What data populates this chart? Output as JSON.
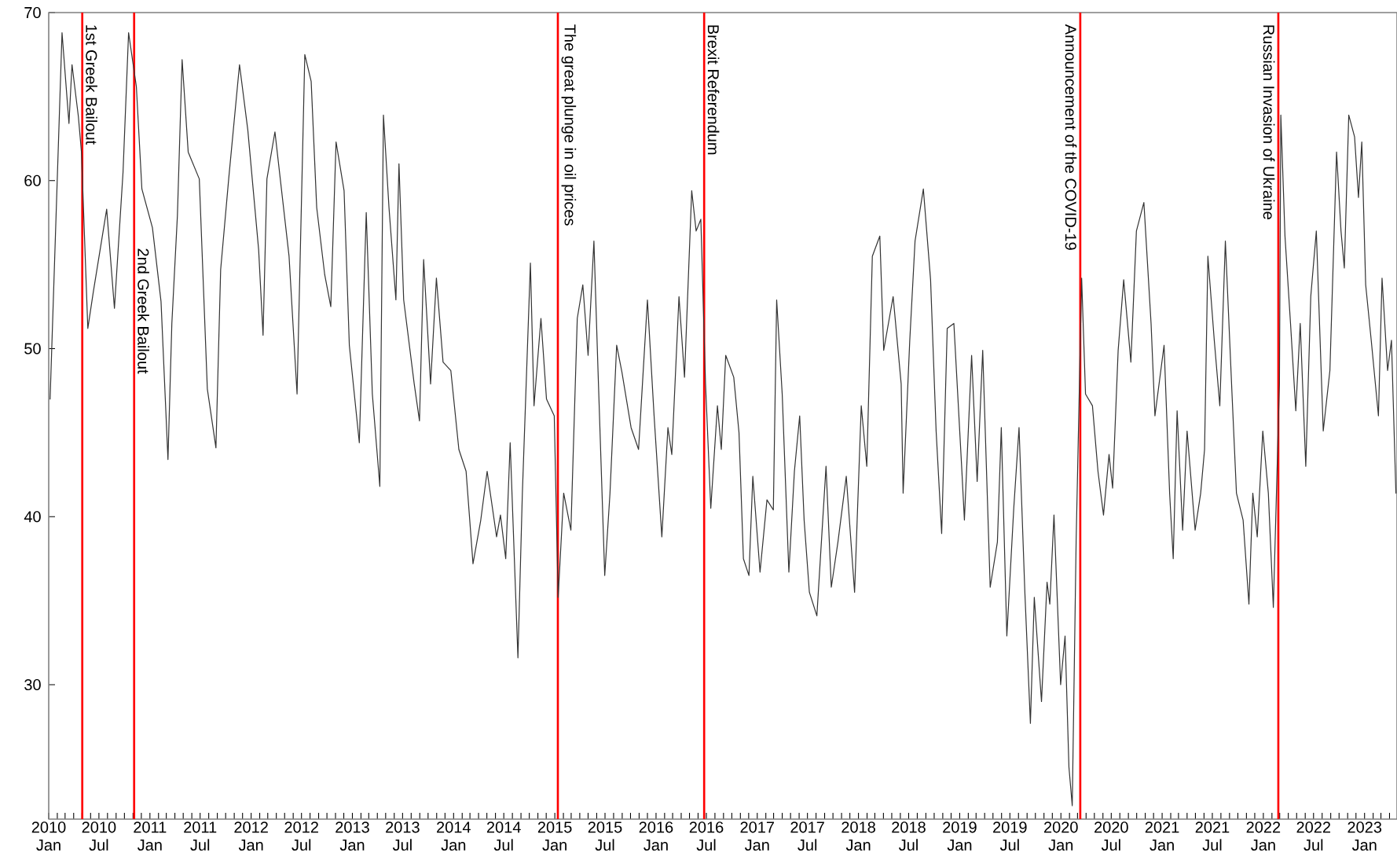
{
  "chart_data": {
    "type": "line",
    "x": [
      "2010-01-06",
      "2010-02-18",
      "2010-03-15",
      "2010-03-26",
      "2010-04-18",
      "2010-04-29",
      "2010-05-22",
      "2010-06-11",
      "2010-07-29",
      "2010-08-26",
      "2010-09-26",
      "2010-10-16",
      "2010-11-13",
      "2010-12-03",
      "2011-01-10",
      "2011-02-10",
      "2011-03-07",
      "2011-03-21",
      "2011-04-10",
      "2011-04-27",
      "2011-05-19",
      "2011-06-28",
      "2011-07-27",
      "2011-08-27",
      "2011-09-13",
      "2011-10-12",
      "2011-11-20",
      "2011-12-20",
      "2012-01-28",
      "2012-02-13",
      "2012-02-27",
      "2012-03-27",
      "2012-05-17",
      "2012-06-15",
      "2012-07-13",
      "2012-08-05",
      "2012-08-25",
      "2012-09-23",
      "2012-10-15",
      "2012-11-03",
      "2012-12-02",
      "2012-12-21",
      "2013-01-26",
      "2013-02-20",
      "2013-03-14",
      "2013-04-10",
      "2013-04-23",
      "2013-05-13",
      "2013-06-07",
      "2013-06-18",
      "2013-07-05",
      "2013-08-12",
      "2013-08-31",
      "2013-09-15",
      "2013-10-10",
      "2013-10-31",
      "2013-11-24",
      "2013-12-22",
      "2014-01-20",
      "2014-02-15",
      "2014-03-12",
      "2014-04-09",
      "2014-05-02",
      "2014-06-05",
      "2014-06-19",
      "2014-07-08",
      "2014-07-24",
      "2014-08-21",
      "2014-09-06",
      "2014-10-05",
      "2014-10-18",
      "2014-11-12",
      "2014-12-02",
      "2014-12-30",
      "2015-01-13",
      "2015-02-02",
      "2015-02-28",
      "2015-03-23",
      "2015-04-12",
      "2015-05-01",
      "2015-05-22",
      "2015-06-06",
      "2015-06-30",
      "2015-07-19",
      "2015-08-12",
      "2015-08-31",
      "2015-10-03",
      "2015-10-30",
      "2015-12-01",
      "2015-12-25",
      "2016-01-22",
      "2016-02-13",
      "2016-02-27",
      "2016-03-24",
      "2016-04-13",
      "2016-05-09",
      "2016-05-25",
      "2016-06-11",
      "2016-06-28",
      "2016-07-17",
      "2016-08-10",
      "2016-08-24",
      "2016-09-09",
      "2016-10-08",
      "2016-10-27",
      "2016-11-12",
      "2016-12-02",
      "2016-12-16",
      "2017-01-11",
      "2017-02-05",
      "2017-02-28",
      "2017-03-12",
      "2017-04-01",
      "2017-04-25",
      "2017-05-15",
      "2017-06-03",
      "2017-06-19",
      "2017-07-08",
      "2017-08-04",
      "2017-09-06",
      "2017-09-25",
      "2017-10-19",
      "2017-11-18",
      "2017-12-18",
      "2018-01-11",
      "2018-01-31",
      "2018-02-20",
      "2018-03-19",
      "2018-04-02",
      "2018-05-06",
      "2018-06-04",
      "2018-06-11",
      "2018-07-05",
      "2018-07-24",
      "2018-08-23",
      "2018-09-18",
      "2018-10-08",
      "2018-10-28",
      "2018-11-17",
      "2018-12-11",
      "2019-01-08",
      "2019-01-18",
      "2019-02-13",
      "2019-03-05",
      "2019-03-25",
      "2019-04-21",
      "2019-05-17",
      "2019-05-31",
      "2019-06-20",
      "2019-07-15",
      "2019-08-03",
      "2019-08-24",
      "2019-09-13",
      "2019-09-27",
      "2019-10-23",
      "2019-11-12",
      "2019-11-22",
      "2019-12-07",
      "2019-12-31",
      "2020-01-16",
      "2020-01-30",
      "2020-02-11",
      "2020-02-25",
      "2020-03-16",
      "2020-03-30",
      "2020-04-24",
      "2020-05-14",
      "2020-06-03",
      "2020-06-23",
      "2020-07-06",
      "2020-07-26",
      "2020-08-15",
      "2020-09-10",
      "2020-09-30",
      "2020-10-27",
      "2020-11-22",
      "2020-12-06",
      "2021-01-08",
      "2021-01-28",
      "2021-02-10",
      "2021-02-24",
      "2021-03-16",
      "2021-04-01",
      "2021-04-30",
      "2021-05-20",
      "2021-06-03",
      "2021-06-15",
      "2021-07-08",
      "2021-07-28",
      "2021-08-17",
      "2021-09-10",
      "2021-09-26",
      "2021-10-20",
      "2021-11-10",
      "2021-11-24",
      "2021-12-10",
      "2021-12-30",
      "2022-01-19",
      "2022-02-06",
      "2022-02-28",
      "2022-03-05",
      "2022-03-20",
      "2022-04-09",
      "2022-04-28",
      "2022-05-14",
      "2022-06-03",
      "2022-06-21",
      "2022-07-11",
      "2022-08-05",
      "2022-08-29",
      "2022-09-22",
      "2022-10-08",
      "2022-10-20",
      "2022-11-05",
      "2022-11-26",
      "2022-12-10",
      "2022-12-22",
      "2023-01-05",
      "2023-01-25",
      "2023-02-20",
      "2023-03-05",
      "2023-03-25",
      "2023-04-08",
      "2023-04-24"
    ],
    "series": [
      {
        "color": "#333333",
        "values": [
          47,
          68.8,
          63.4,
          66.9,
          63.8,
          61.7,
          51.2,
          53.4,
          58.3,
          52.4,
          60.5,
          68.8,
          65.6,
          59.5,
          57.2,
          52.8,
          43.4,
          51.5,
          57.9,
          67.2,
          61.7,
          60.1,
          47.6,
          44.1,
          54.7,
          60.1,
          66.9,
          63.0,
          55.9,
          50.8,
          60.1,
          62.9,
          55.5,
          47.3,
          67.5,
          65.9,
          58.4,
          54.4,
          52.5,
          62.3,
          59.4,
          50.2,
          44.4,
          58.1,
          47.3,
          41.8,
          63.9,
          58.4,
          52.9,
          61.0,
          52.9,
          47.9,
          45.7,
          55.3,
          47.9,
          54.2,
          49.2,
          48.7,
          44.0,
          42.7,
          37.2,
          39.8,
          42.7,
          38.8,
          40.1,
          37.5,
          44.4,
          31.6,
          41.4,
          55.1,
          46.6,
          51.8,
          47.0,
          46.0,
          35.2,
          41.4,
          39.2,
          51.8,
          53.8,
          49.6,
          56.4,
          48.6,
          36.5,
          41.4,
          50.2,
          48.6,
          45.3,
          44.0,
          52.9,
          46.0,
          38.8,
          45.3,
          43.7,
          53.1,
          48.3,
          59.4,
          57.0,
          57.7,
          47.9,
          40.5,
          46.6,
          44.0,
          49.6,
          48.3,
          45.0,
          37.5,
          36.5,
          42.4,
          36.7,
          41.0,
          40.4,
          52.9,
          47.3,
          36.7,
          42.7,
          46.0,
          39.8,
          35.5,
          34.1,
          43.0,
          35.8,
          38.5,
          42.4,
          35.5,
          46.6,
          43.0,
          55.5,
          56.7,
          49.9,
          53.1,
          47.9,
          41.4,
          50.5,
          56.4,
          59.5,
          54.1,
          45.1,
          39.0,
          51.2,
          51.5,
          43.0,
          39.8,
          49.6,
          42.1,
          49.9,
          35.8,
          38.5,
          45.3,
          32.9,
          40.5,
          45.3,
          35.5,
          27.7,
          35.2,
          29.0,
          36.1,
          34.8,
          40.1,
          30.0,
          32.9,
          25.1,
          22.8,
          38.5,
          54.2,
          47.3,
          46.6,
          42.7,
          40.1,
          43.7,
          41.7,
          49.9,
          54.1,
          49.2,
          57.0,
          58.7,
          51.5,
          46.0,
          50.2,
          41.4,
          37.5,
          46.3,
          39.2,
          45.1,
          39.2,
          41.4,
          44.0,
          55.5,
          50.5,
          46.6,
          56.4,
          47.3,
          41.4,
          39.8,
          34.8,
          41.4,
          38.8,
          45.1,
          41.4,
          34.6,
          47.9,
          63.9,
          56.7,
          51.5,
          46.3,
          51.5,
          43.0,
          53.1,
          57.0,
          45.1,
          48.7,
          61.7,
          57.0,
          54.8,
          63.9,
          62.6,
          59.0,
          62.3,
          53.8,
          50.5,
          46.0,
          54.2,
          48.7,
          50.5,
          41.4
        ]
      }
    ],
    "xlim": [
      "2010-01-01",
      "2023-04-28"
    ],
    "ylim": [
      22,
      70
    ],
    "yticks": [
      30,
      40,
      50,
      60,
      70
    ],
    "xticks": [
      {
        "value": "2010-01",
        "label": "2010 Jan"
      },
      {
        "value": "2010-02",
        "label": null
      },
      {
        "value": "2010-03",
        "label": null
      },
      {
        "value": "2010-04",
        "label": null
      },
      {
        "value": "2010-05",
        "label": null
      },
      {
        "value": "2010-06",
        "label": null
      },
      {
        "value": "2010-07",
        "label": "2010 Jul"
      },
      {
        "value": "2010-08",
        "label": null
      },
      {
        "value": "2010-09",
        "label": null
      },
      {
        "value": "2010-10",
        "label": null
      },
      {
        "value": "2010-11",
        "label": null
      },
      {
        "value": "2010-12",
        "label": null
      },
      {
        "value": "2011-01",
        "label": "2011 Jan"
      },
      {
        "value": "2011-02",
        "label": null
      },
      {
        "value": "2011-03",
        "label": null
      },
      {
        "value": "2011-04",
        "label": null
      },
      {
        "value": "2011-05",
        "label": null
      },
      {
        "value": "2011-06",
        "label": null
      },
      {
        "value": "2011-07",
        "label": "2011 Jul"
      },
      {
        "value": "2011-08",
        "label": null
      },
      {
        "value": "2011-09",
        "label": null
      },
      {
        "value": "2011-10",
        "label": null
      },
      {
        "value": "2011-11",
        "label": null
      },
      {
        "value": "2011-12",
        "label": null
      },
      {
        "value": "2012-01",
        "label": "2012 Jan"
      },
      {
        "value": "2012-02",
        "label": null
      },
      {
        "value": "2012-03",
        "label": null
      },
      {
        "value": "2012-04",
        "label": null
      },
      {
        "value": "2012-05",
        "label": null
      },
      {
        "value": "2012-06",
        "label": null
      },
      {
        "value": "2012-07",
        "label": "2012 Jul"
      },
      {
        "value": "2012-08",
        "label": null
      },
      {
        "value": "2012-09",
        "label": null
      },
      {
        "value": "2012-10",
        "label": null
      },
      {
        "value": "2012-11",
        "label": null
      },
      {
        "value": "2012-12",
        "label": null
      },
      {
        "value": "2013-01",
        "label": "2013 Jan"
      },
      {
        "value": "2013-02",
        "label": null
      },
      {
        "value": "2013-03",
        "label": null
      },
      {
        "value": "2013-04",
        "label": null
      },
      {
        "value": "2013-05",
        "label": null
      },
      {
        "value": "2013-06",
        "label": null
      },
      {
        "value": "2013-07",
        "label": "2013 Jul"
      },
      {
        "value": "2013-08",
        "label": null
      },
      {
        "value": "2013-09",
        "label": null
      },
      {
        "value": "2013-10",
        "label": null
      },
      {
        "value": "2013-11",
        "label": null
      },
      {
        "value": "2013-12",
        "label": null
      },
      {
        "value": "2014-01",
        "label": "2014 Jan"
      },
      {
        "value": "2014-02",
        "label": null
      },
      {
        "value": "2014-03",
        "label": null
      },
      {
        "value": "2014-04",
        "label": null
      },
      {
        "value": "2014-05",
        "label": null
      },
      {
        "value": "2014-06",
        "label": null
      },
      {
        "value": "2014-07",
        "label": "2014 Jul"
      },
      {
        "value": "2014-08",
        "label": null
      },
      {
        "value": "2014-09",
        "label": null
      },
      {
        "value": "2014-10",
        "label": null
      },
      {
        "value": "2014-11",
        "label": null
      },
      {
        "value": "2014-12",
        "label": null
      },
      {
        "value": "2015-01",
        "label": "2015 Jan"
      },
      {
        "value": "2015-02",
        "label": null
      },
      {
        "value": "2015-03",
        "label": null
      },
      {
        "value": "2015-04",
        "label": null
      },
      {
        "value": "2015-05",
        "label": null
      },
      {
        "value": "2015-06",
        "label": null
      },
      {
        "value": "2015-07",
        "label": "2015 Jul"
      },
      {
        "value": "2015-08",
        "label": null
      },
      {
        "value": "2015-09",
        "label": null
      },
      {
        "value": "2015-10",
        "label": null
      },
      {
        "value": "2015-11",
        "label": null
      },
      {
        "value": "2015-12",
        "label": null
      },
      {
        "value": "2016-01",
        "label": "2016 Jan"
      },
      {
        "value": "2016-02",
        "label": null
      },
      {
        "value": "2016-03",
        "label": null
      },
      {
        "value": "2016-04",
        "label": null
      },
      {
        "value": "2016-05",
        "label": null
      },
      {
        "value": "2016-06",
        "label": null
      },
      {
        "value": "2016-07",
        "label": "2016 Jul"
      },
      {
        "value": "2016-08",
        "label": null
      },
      {
        "value": "2016-09",
        "label": null
      },
      {
        "value": "2016-10",
        "label": null
      },
      {
        "value": "2016-11",
        "label": null
      },
      {
        "value": "2016-12",
        "label": null
      },
      {
        "value": "2017-01",
        "label": "2017 Jan"
      },
      {
        "value": "2017-02",
        "label": null
      },
      {
        "value": "2017-03",
        "label": null
      },
      {
        "value": "2017-04",
        "label": null
      },
      {
        "value": "2017-05",
        "label": null
      },
      {
        "value": "2017-06",
        "label": null
      },
      {
        "value": "2017-07",
        "label": "2017 Jul"
      },
      {
        "value": "2017-08",
        "label": null
      },
      {
        "value": "2017-09",
        "label": null
      },
      {
        "value": "2017-10",
        "label": null
      },
      {
        "value": "2017-11",
        "label": null
      },
      {
        "value": "2017-12",
        "label": null
      },
      {
        "value": "2018-01",
        "label": "2018 Jan"
      },
      {
        "value": "2018-02",
        "label": null
      },
      {
        "value": "2018-03",
        "label": null
      },
      {
        "value": "2018-04",
        "label": null
      },
      {
        "value": "2018-05",
        "label": null
      },
      {
        "value": "2018-06",
        "label": null
      },
      {
        "value": "2018-07",
        "label": "2018 Jul"
      },
      {
        "value": "2018-08",
        "label": null
      },
      {
        "value": "2018-09",
        "label": null
      },
      {
        "value": "2018-10",
        "label": null
      },
      {
        "value": "2018-11",
        "label": null
      },
      {
        "value": "2018-12",
        "label": null
      },
      {
        "value": "2019-01",
        "label": "2019 Jan"
      },
      {
        "value": "2019-02",
        "label": null
      },
      {
        "value": "2019-03",
        "label": null
      },
      {
        "value": "2019-04",
        "label": null
      },
      {
        "value": "2019-05",
        "label": null
      },
      {
        "value": "2019-06",
        "label": null
      },
      {
        "value": "2019-07",
        "label": "2019 Jul"
      },
      {
        "value": "2019-08",
        "label": null
      },
      {
        "value": "2019-09",
        "label": null
      },
      {
        "value": "2019-10",
        "label": null
      },
      {
        "value": "2019-11",
        "label": null
      },
      {
        "value": "2019-12",
        "label": null
      },
      {
        "value": "2020-01",
        "label": "2020 Jan"
      },
      {
        "value": "2020-02",
        "label": null
      },
      {
        "value": "2020-03",
        "label": null
      },
      {
        "value": "2020-04",
        "label": null
      },
      {
        "value": "2020-05",
        "label": null
      },
      {
        "value": "2020-06",
        "label": null
      },
      {
        "value": "2020-07",
        "label": "2020 Jul"
      },
      {
        "value": "2020-08",
        "label": null
      },
      {
        "value": "2020-09",
        "label": null
      },
      {
        "value": "2020-10",
        "label": null
      },
      {
        "value": "2020-11",
        "label": null
      },
      {
        "value": "2020-12",
        "label": null
      },
      {
        "value": "2021-01",
        "label": "2021 Jan"
      },
      {
        "value": "2021-02",
        "label": null
      },
      {
        "value": "2021-03",
        "label": null
      },
      {
        "value": "2021-04",
        "label": null
      },
      {
        "value": "2021-05",
        "label": null
      },
      {
        "value": "2021-06",
        "label": null
      },
      {
        "value": "2021-07",
        "label": "2021 Jul"
      },
      {
        "value": "2021-08",
        "label": null
      },
      {
        "value": "2021-09",
        "label": null
      },
      {
        "value": "2021-10",
        "label": null
      },
      {
        "value": "2021-11",
        "label": null
      },
      {
        "value": "2021-12",
        "label": null
      },
      {
        "value": "2022-01",
        "label": "2022 Jan"
      },
      {
        "value": "2022-02",
        "label": null
      },
      {
        "value": "2022-03",
        "label": null
      },
      {
        "value": "2022-04",
        "label": null
      },
      {
        "value": "2022-05",
        "label": null
      },
      {
        "value": "2022-06",
        "label": null
      },
      {
        "value": "2022-07",
        "label": "2022 Jul"
      },
      {
        "value": "2022-08",
        "label": null
      },
      {
        "value": "2022-09",
        "label": null
      },
      {
        "value": "2022-10",
        "label": null
      },
      {
        "value": "2022-11",
        "label": null
      },
      {
        "value": "2022-12",
        "label": null
      },
      {
        "value": "2023-01",
        "label": "2023 Jan"
      },
      {
        "value": "2023-02",
        "label": null
      },
      {
        "value": "2023-03",
        "label": null
      },
      {
        "value": "2023-04",
        "label": null
      }
    ],
    "ref_lines": [
      {
        "axis": "x",
        "value": "2010-05-02",
        "label": "1st Greek Bailout",
        "color": "#ff0000"
      },
      {
        "axis": "x",
        "value": "2010-11-05",
        "label": "2nd Greek Bailout",
        "color": "#ff0000"
      },
      {
        "axis": "x",
        "value": "2015-01-12",
        "label": "The great plunge in oil prices",
        "color": "#ff0000"
      },
      {
        "axis": "x",
        "value": "2016-06-23",
        "label": "Brexit Referendum",
        "color": "#ff0000"
      },
      {
        "axis": "x",
        "value": "2020-03-11",
        "label": "Announcement of the COVID-19",
        "color": "#ff0000"
      },
      {
        "axis": "x",
        "value": "2022-02-24",
        "label": "Russian Invasion of Ukraine",
        "color": "#ff0000"
      }
    ]
  }
}
